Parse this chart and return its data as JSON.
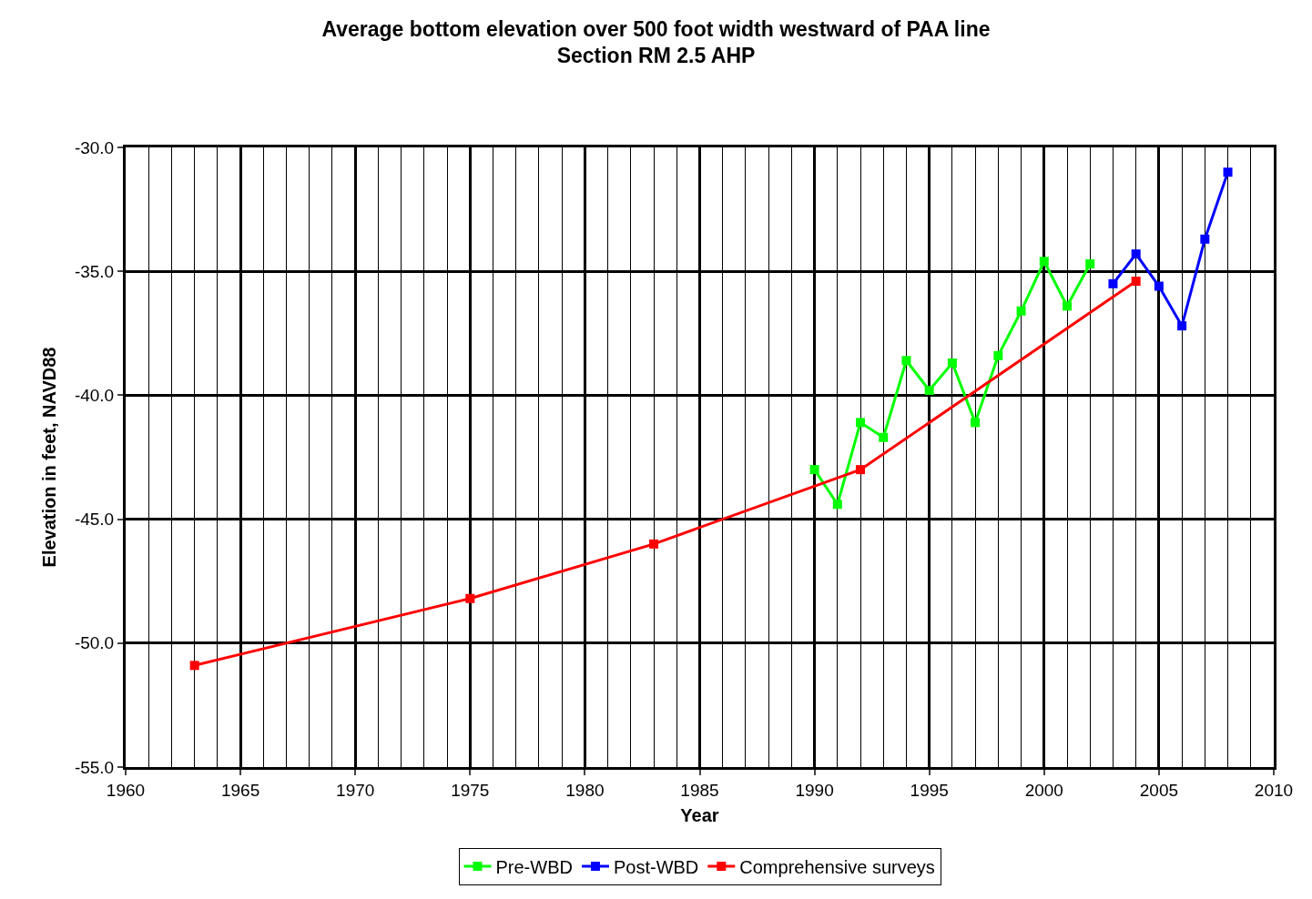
{
  "chart_data": {
    "type": "line",
    "title": "Average bottom elevation over 500 foot width westward of PAA line\nSection RM 2.5 AHP",
    "xlabel": "Year",
    "ylabel": "Elevation in feet, NAVD88",
    "series": [
      {
        "name": "Pre-WBD",
        "color": "#00ff00",
        "x": [
          1990,
          1991,
          1992,
          1993,
          1994,
          1995,
          1996,
          1997,
          1998,
          1999,
          2000,
          2001,
          2002
        ],
        "values": [
          -43.0,
          -44.4,
          -41.1,
          -41.7,
          -38.6,
          -39.8,
          -38.7,
          -41.1,
          -38.4,
          -36.6,
          -34.6,
          -36.4,
          -34.7
        ]
      },
      {
        "name": "Post-WBD",
        "color": "#0000ff",
        "x": [
          2003,
          2004,
          2005,
          2006,
          2007,
          2008
        ],
        "values": [
          -35.5,
          -34.3,
          -35.6,
          -37.2,
          -33.7,
          -31.0
        ]
      },
      {
        "name": "Comprehensive surveys",
        "color": "#ff0000",
        "x": [
          1963,
          1975,
          1983,
          1992,
          2004
        ],
        "values": [
          -50.9,
          -48.2,
          -46.0,
          -43.0,
          -35.4
        ]
      }
    ],
    "xlim": [
      1960,
      2010
    ],
    "xticks": [
      1960,
      1965,
      1970,
      1975,
      1980,
      1985,
      1990,
      1995,
      2000,
      2005,
      2010
    ],
    "ylim": [
      -55,
      -30
    ],
    "yticks": [
      {
        "value": -55,
        "label": "-55.0"
      },
      {
        "value": -50,
        "label": "-50.0"
      },
      {
        "value": -45,
        "label": "-45.0"
      },
      {
        "value": -40,
        "label": "-40.0"
      },
      {
        "value": -35,
        "label": "-35.0"
      },
      {
        "value": -30,
        "label": "-30.0"
      }
    ],
    "grid": true,
    "legend": "bottom",
    "marker": "square",
    "line_style": "solid"
  }
}
